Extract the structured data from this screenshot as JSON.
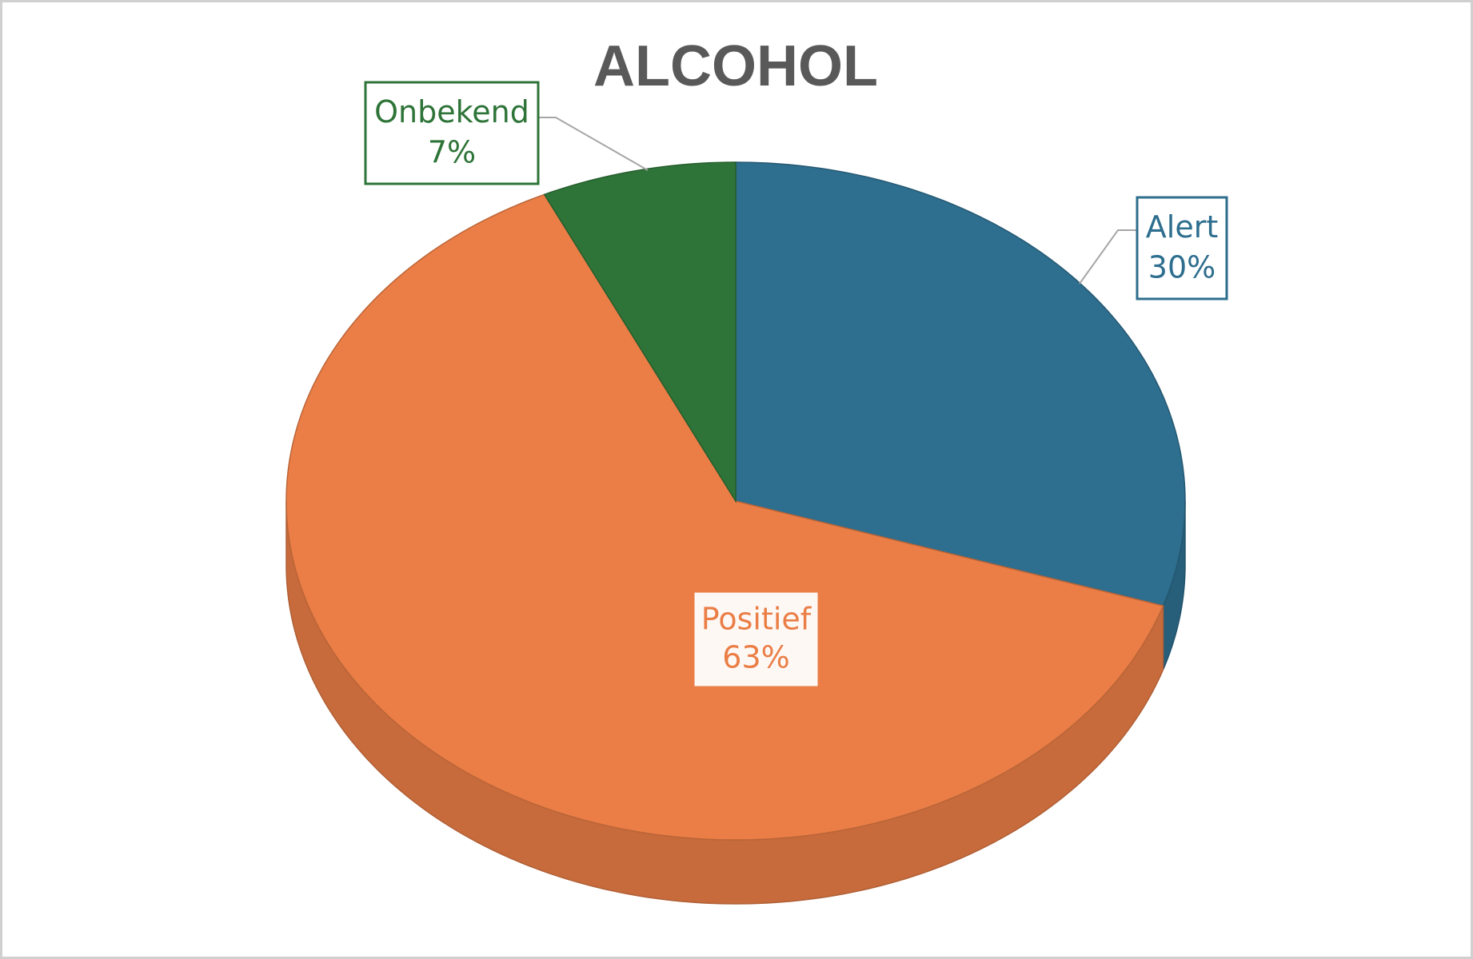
{
  "chart_data": {
    "type": "pie",
    "title": "ALCOHOL",
    "categories": [
      "Alert",
      "Positief",
      "Onbekend"
    ],
    "values": [
      30,
      63,
      7
    ],
    "value_labels": [
      "30%",
      "63%",
      "7%"
    ],
    "colors": [
      "#2e6e8e",
      "#ea7e46",
      "#2e7438"
    ]
  }
}
